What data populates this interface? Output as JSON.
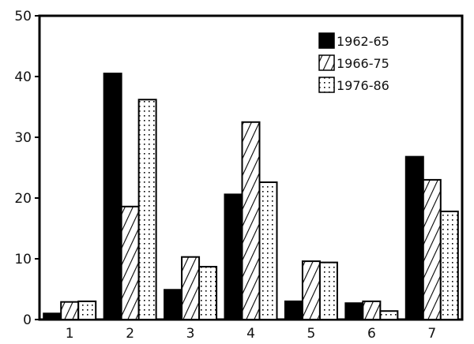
{
  "chart_data": {
    "type": "bar",
    "title": "",
    "xlabel": "",
    "ylabel": "",
    "categories": [
      "1",
      "2",
      "3",
      "4",
      "5",
      "6",
      "7"
    ],
    "series": [
      {
        "name": "1962-65",
        "fill": "solid",
        "values": [
          1.0,
          40.5,
          4.9,
          20.6,
          3.0,
          2.7,
          26.8
        ]
      },
      {
        "name": "1966-75",
        "fill": "hatched",
        "values": [
          2.9,
          18.6,
          10.3,
          32.5,
          9.6,
          3.0,
          23.0
        ]
      },
      {
        "name": "1976-86",
        "fill": "dotted",
        "values": [
          3.0,
          36.2,
          8.7,
          22.6,
          9.4,
          1.4,
          17.8
        ]
      }
    ],
    "ylim": [
      0,
      50
    ],
    "yticks": [
      0,
      10,
      20,
      30,
      40,
      50
    ],
    "grid": false,
    "legend_position": "top-right inside"
  },
  "legend": {
    "items": [
      "1962-65",
      "1966-75",
      "1976-86"
    ]
  },
  "colors": {
    "ink": "#000000",
    "background": "#ffffff"
  }
}
